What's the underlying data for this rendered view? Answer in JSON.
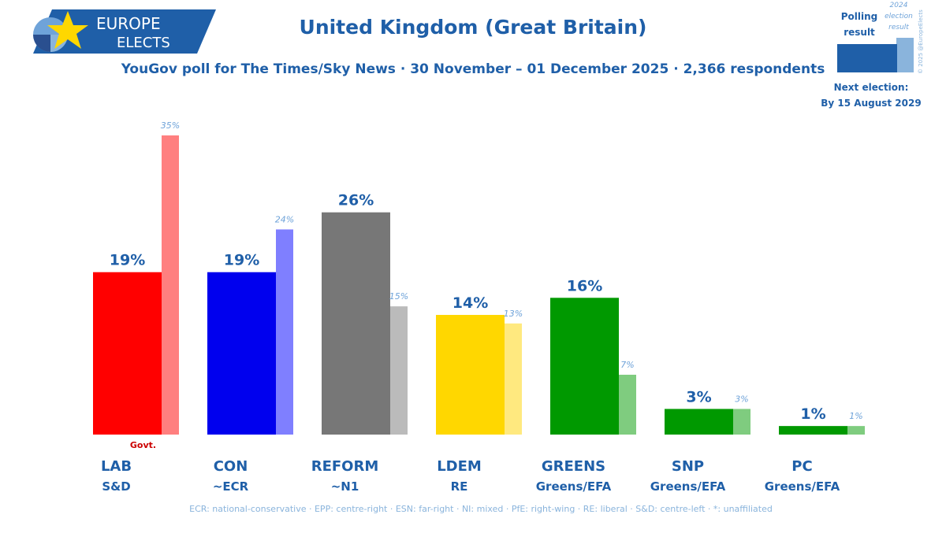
{
  "header": {
    "logo_line1": "EUROPE",
    "logo_line2": "ELECTS",
    "title": "United Kingdom (Great Britain)",
    "subtitle": "YouGov poll for The Times/Sky News · 30 November – 01 December 2025 · 2,366 respondents"
  },
  "legend": {
    "polling_label_1": "Polling",
    "polling_label_2": "result",
    "election_label_1": "2024",
    "election_label_2": "election",
    "election_label_3": "result",
    "copyright": "© 2025 @EuropeElects",
    "next_election_1": "Next election:",
    "next_election_2": "By 15 August 2029",
    "polling_color": "#1f5fa8",
    "election_color": "#8ab4dc"
  },
  "chart_data": {
    "type": "bar",
    "ylim": [
      0,
      35
    ],
    "series": [
      {
        "name": "Polling result",
        "values": [
          19,
          19,
          26,
          14,
          16,
          3,
          1
        ]
      },
      {
        "name": "2024 election result",
        "values": [
          35,
          24,
          15,
          13,
          7,
          3,
          1
        ]
      }
    ],
    "categories": [
      "LAB",
      "CON",
      "REFORM",
      "LDEM",
      "GREENS",
      "SNP",
      "PC"
    ],
    "groups": [
      "S&D",
      "~ECR",
      "~N1",
      "RE",
      "Greens/EFA",
      "Greens/EFA",
      "Greens/EFA"
    ],
    "poll_labels": [
      "19%",
      "19%",
      "26%",
      "14%",
      "16%",
      "3%",
      "1%"
    ],
    "election_labels": [
      "35%",
      "24%",
      "15%",
      "13%",
      "7%",
      "3%",
      "1%"
    ],
    "colors": [
      "#ff0000",
      "#0000ee",
      "#777777",
      "#ffd700",
      "#009900",
      "#009900",
      "#009900"
    ],
    "election_colors": [
      "#ff7f7f",
      "#7f7fff",
      "#bbbbbb",
      "#ffe97f",
      "#7fcc7f",
      "#7fcc7f",
      "#7fcc7f"
    ],
    "govt_label": "Govt.",
    "govt_index": 0
  },
  "footnote": "ECR: national-conservative · EPP: centre-right · ESN: far-right · NI: mixed · PfE: right-wing · RE: liberal · S&D: centre-left · *: unaffiliated"
}
